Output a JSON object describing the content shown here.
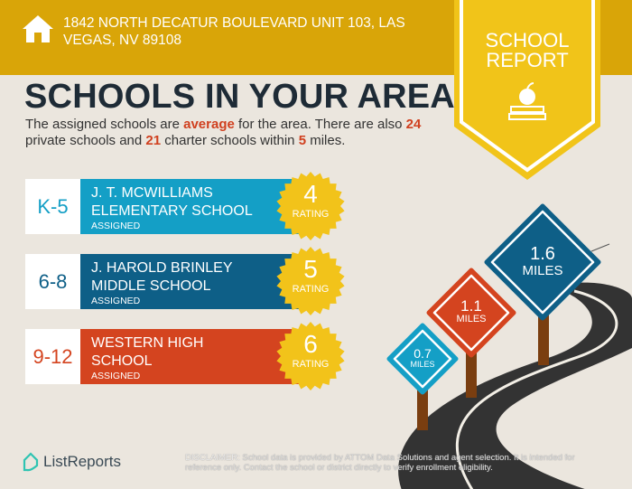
{
  "header": {
    "address": "1842 NORTH DECATUR BOULEVARD UNIT 103, LAS VEGAS, NV 89108",
    "icon": "house-icon"
  },
  "badge": {
    "line1": "SCHOOL",
    "line2": "REPORT",
    "icon": "apple-books-icon"
  },
  "title": "SCHOOLS IN YOUR AREA",
  "intro": {
    "p1": "The assigned schools are ",
    "quality": "average",
    "p2": " for the area. There are also ",
    "private_count": "24",
    "p3": " private schools and ",
    "charter_count": "21",
    "p4": " charter schools within ",
    "miles": "5",
    "p5": " miles."
  },
  "schools": [
    {
      "grade": "K-5",
      "name_line1": "J. T. MCWILLIAMS",
      "name_line2": "ELEMENTARY SCHOOL",
      "status": "ASSIGNED",
      "rating": "4",
      "rating_label": "RATING",
      "color": "#149fc6",
      "distance": "0.7",
      "distance_unit": "MILES"
    },
    {
      "grade": "6-8",
      "name_line1": "J. HAROLD BRINLEY",
      "name_line2": "MIDDLE SCHOOL",
      "status": "ASSIGNED",
      "rating": "5",
      "rating_label": "RATING",
      "color": "#0e5f87",
      "distance": "1.6",
      "distance_unit": "MILES"
    },
    {
      "grade": "9-12",
      "name_line1": "WESTERN HIGH",
      "name_line2": "SCHOOL",
      "status": "ASSIGNED",
      "rating": "6",
      "rating_label": "RATING",
      "color": "#d4441f",
      "distance": "1.1",
      "distance_unit": "MILES"
    }
  ],
  "colors": {
    "header": "#d9a508",
    "badge": "#f1c419",
    "seal": "#f2c31a",
    "road": "#333333",
    "post": "#7a3e10"
  },
  "footer": {
    "logo": "ListReports",
    "disclaimer_label": "DISCLAIMER:",
    "disclaimer": " School data is provided by ATTOM Data Solutions and agent selection. It is intended for reference only. Contact the school or district directly to verify enrollment eligibility."
  }
}
